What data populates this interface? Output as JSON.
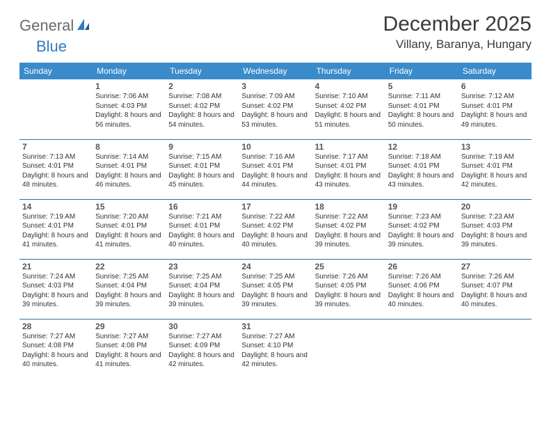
{
  "logo": {
    "part1": "General",
    "part2": "Blue"
  },
  "title": "December 2025",
  "location": "Villany, Baranya, Hungary",
  "dayHeaders": [
    "Sunday",
    "Monday",
    "Tuesday",
    "Wednesday",
    "Thursday",
    "Friday",
    "Saturday"
  ],
  "colors": {
    "headerBg": "#3a8bc9",
    "headerFg": "#ffffff",
    "rowBorder": "#2f6fa3",
    "logoAccent": "#2f7bbf",
    "logoGrey": "#6a6a6a"
  },
  "weeks": [
    [
      null,
      {
        "n": "1",
        "sunrise": "7:06 AM",
        "sunset": "4:03 PM",
        "day": "8 hours and 56 minutes."
      },
      {
        "n": "2",
        "sunrise": "7:08 AM",
        "sunset": "4:02 PM",
        "day": "8 hours and 54 minutes."
      },
      {
        "n": "3",
        "sunrise": "7:09 AM",
        "sunset": "4:02 PM",
        "day": "8 hours and 53 minutes."
      },
      {
        "n": "4",
        "sunrise": "7:10 AM",
        "sunset": "4:02 PM",
        "day": "8 hours and 51 minutes."
      },
      {
        "n": "5",
        "sunrise": "7:11 AM",
        "sunset": "4:01 PM",
        "day": "8 hours and 50 minutes."
      },
      {
        "n": "6",
        "sunrise": "7:12 AM",
        "sunset": "4:01 PM",
        "day": "8 hours and 49 minutes."
      }
    ],
    [
      {
        "n": "7",
        "sunrise": "7:13 AM",
        "sunset": "4:01 PM",
        "day": "8 hours and 48 minutes."
      },
      {
        "n": "8",
        "sunrise": "7:14 AM",
        "sunset": "4:01 PM",
        "day": "8 hours and 46 minutes."
      },
      {
        "n": "9",
        "sunrise": "7:15 AM",
        "sunset": "4:01 PM",
        "day": "8 hours and 45 minutes."
      },
      {
        "n": "10",
        "sunrise": "7:16 AM",
        "sunset": "4:01 PM",
        "day": "8 hours and 44 minutes."
      },
      {
        "n": "11",
        "sunrise": "7:17 AM",
        "sunset": "4:01 PM",
        "day": "8 hours and 43 minutes."
      },
      {
        "n": "12",
        "sunrise": "7:18 AM",
        "sunset": "4:01 PM",
        "day": "8 hours and 43 minutes."
      },
      {
        "n": "13",
        "sunrise": "7:19 AM",
        "sunset": "4:01 PM",
        "day": "8 hours and 42 minutes."
      }
    ],
    [
      {
        "n": "14",
        "sunrise": "7:19 AM",
        "sunset": "4:01 PM",
        "day": "8 hours and 41 minutes."
      },
      {
        "n": "15",
        "sunrise": "7:20 AM",
        "sunset": "4:01 PM",
        "day": "8 hours and 41 minutes."
      },
      {
        "n": "16",
        "sunrise": "7:21 AM",
        "sunset": "4:01 PM",
        "day": "8 hours and 40 minutes."
      },
      {
        "n": "17",
        "sunrise": "7:22 AM",
        "sunset": "4:02 PM",
        "day": "8 hours and 40 minutes."
      },
      {
        "n": "18",
        "sunrise": "7:22 AM",
        "sunset": "4:02 PM",
        "day": "8 hours and 39 minutes."
      },
      {
        "n": "19",
        "sunrise": "7:23 AM",
        "sunset": "4:02 PM",
        "day": "8 hours and 39 minutes."
      },
      {
        "n": "20",
        "sunrise": "7:23 AM",
        "sunset": "4:03 PM",
        "day": "8 hours and 39 minutes."
      }
    ],
    [
      {
        "n": "21",
        "sunrise": "7:24 AM",
        "sunset": "4:03 PM",
        "day": "8 hours and 39 minutes."
      },
      {
        "n": "22",
        "sunrise": "7:25 AM",
        "sunset": "4:04 PM",
        "day": "8 hours and 39 minutes."
      },
      {
        "n": "23",
        "sunrise": "7:25 AM",
        "sunset": "4:04 PM",
        "day": "8 hours and 39 minutes."
      },
      {
        "n": "24",
        "sunrise": "7:25 AM",
        "sunset": "4:05 PM",
        "day": "8 hours and 39 minutes."
      },
      {
        "n": "25",
        "sunrise": "7:26 AM",
        "sunset": "4:05 PM",
        "day": "8 hours and 39 minutes."
      },
      {
        "n": "26",
        "sunrise": "7:26 AM",
        "sunset": "4:06 PM",
        "day": "8 hours and 40 minutes."
      },
      {
        "n": "27",
        "sunrise": "7:26 AM",
        "sunset": "4:07 PM",
        "day": "8 hours and 40 minutes."
      }
    ],
    [
      {
        "n": "28",
        "sunrise": "7:27 AM",
        "sunset": "4:08 PM",
        "day": "8 hours and 40 minutes."
      },
      {
        "n": "29",
        "sunrise": "7:27 AM",
        "sunset": "4:08 PM",
        "day": "8 hours and 41 minutes."
      },
      {
        "n": "30",
        "sunrise": "7:27 AM",
        "sunset": "4:09 PM",
        "day": "8 hours and 42 minutes."
      },
      {
        "n": "31",
        "sunrise": "7:27 AM",
        "sunset": "4:10 PM",
        "day": "8 hours and 42 minutes."
      },
      null,
      null,
      null
    ]
  ]
}
